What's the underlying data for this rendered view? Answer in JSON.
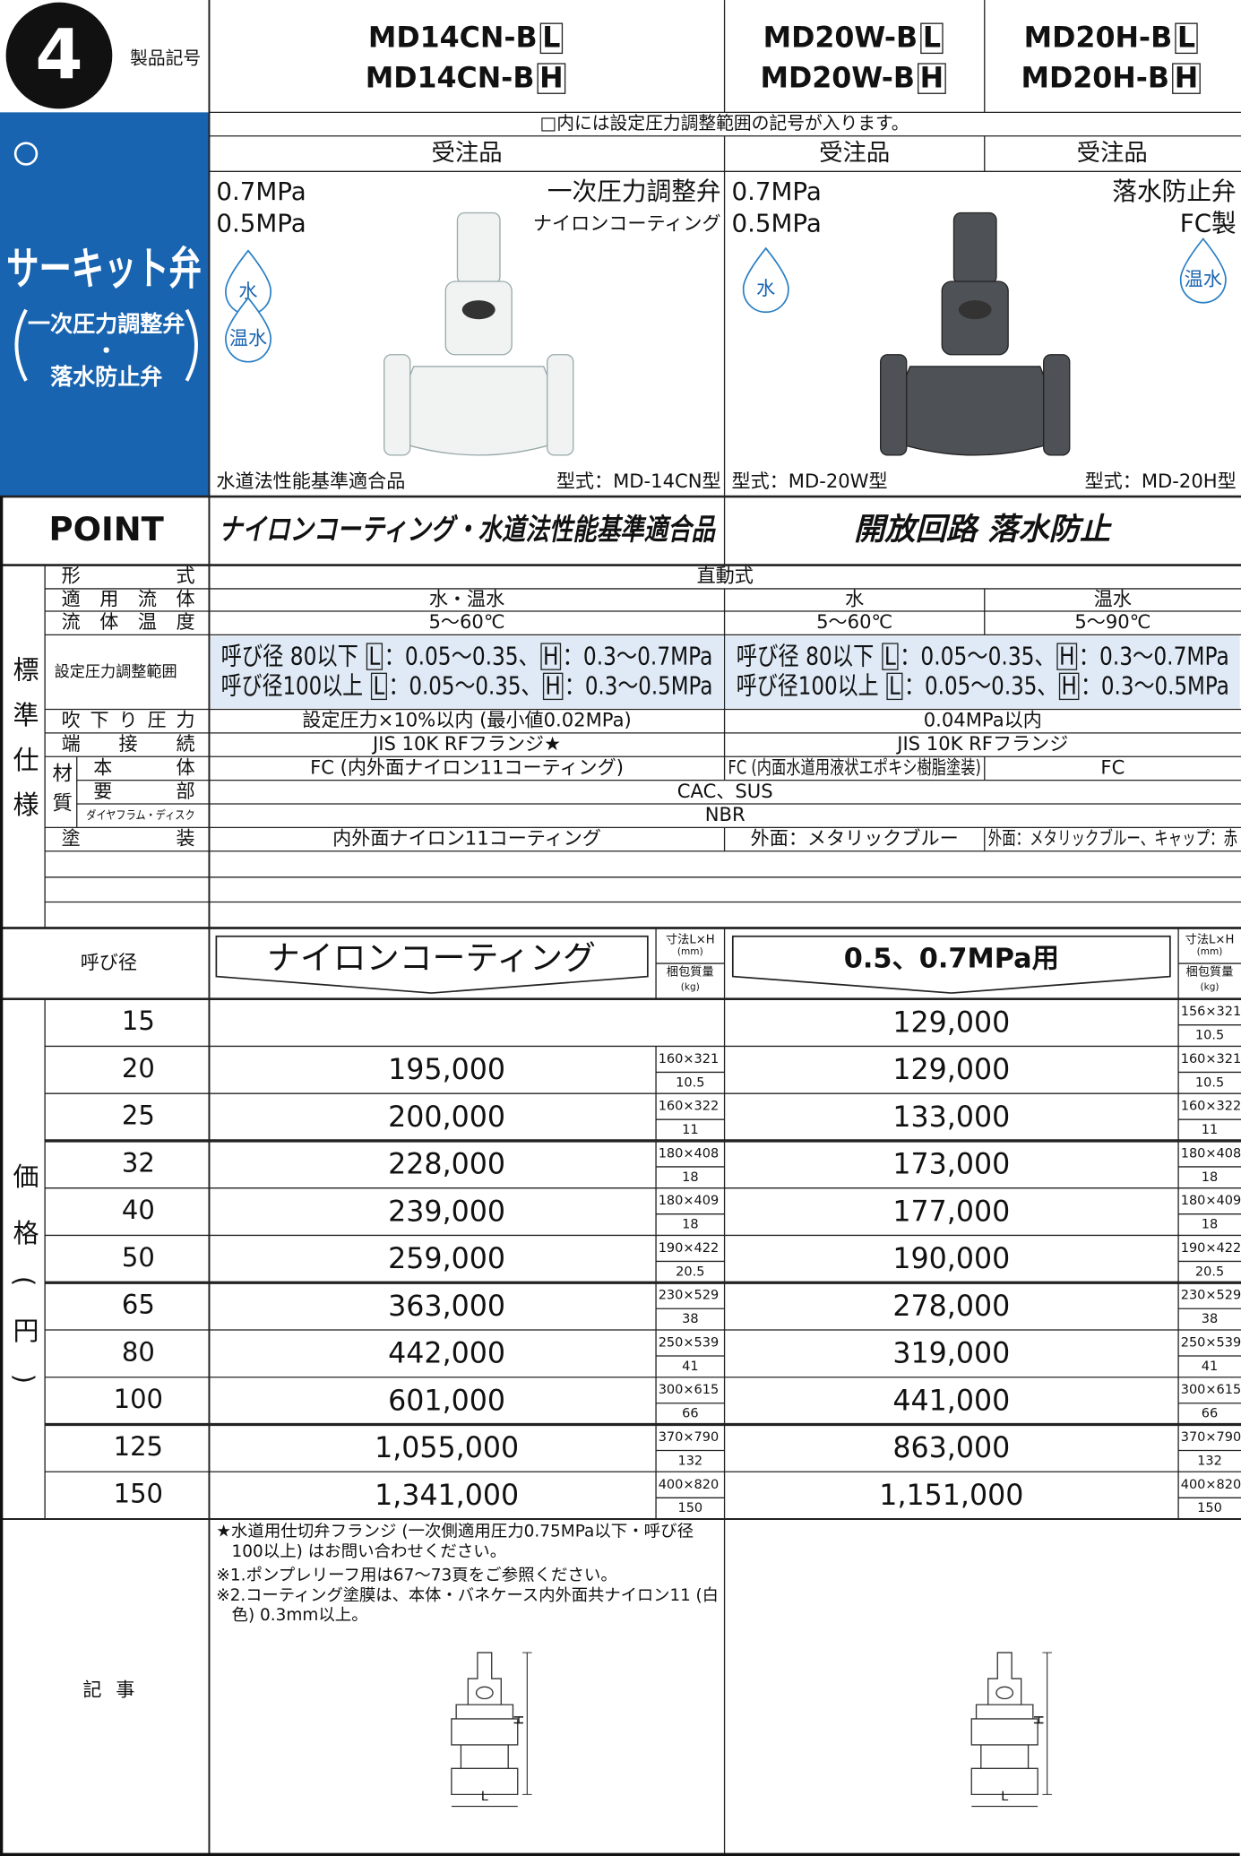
{
  "header": {
    "badge": "4",
    "label": "製品記号",
    "category": "サーキット弁",
    "category_sub": [
      "一次圧力調整弁",
      "・",
      "落水防止弁"
    ]
  },
  "models": [
    {
      "lines": [
        [
          "MD14CN-B",
          "L"
        ],
        [
          "MD14CN-B",
          "H"
        ]
      ]
    },
    {
      "lines": [
        [
          "MD20W-B",
          "L"
        ],
        [
          "MD20W-B",
          "H"
        ]
      ]
    },
    {
      "lines": [
        [
          "MD20H-B",
          "L"
        ],
        [
          "MD20H-B",
          "H"
        ]
      ]
    }
  ],
  "model_note": "□内には設定圧力調整範囲の記号が入ります。",
  "order": [
    "受注品",
    "受注品",
    "受注品"
  ],
  "products": [
    {
      "pressures": [
        "0.7MPa",
        "0.5MPa"
      ],
      "type": "一次圧力調整弁",
      "subtype": "ナイロンコーティング",
      "fluids": [
        "水",
        "温水"
      ],
      "caption_left": "水道法性能基準適合品",
      "caption_right": "型式：MD-14CN型"
    },
    {
      "pressures": [
        "0.7MPa",
        "0.5MPa"
      ],
      "fluids": [
        "水"
      ],
      "caption_left": "型式：MD-20W型"
    },
    {
      "type": "落水防止弁",
      "subtype": "FC製",
      "fluids": [
        "温水"
      ],
      "caption_right": "型式：MD-20H型"
    }
  ],
  "point": {
    "label": "POINT",
    "texts": [
      "ナイロンコーティング・水道法性能基準適合品",
      "開放回路 落水防止"
    ]
  },
  "spec": {
    "label": "標準仕様",
    "rows": [
      {
        "label": "形式",
        "cells": [
          "直動式"
        ]
      },
      {
        "label": "適用流体",
        "cells": [
          "水・温水",
          "水",
          "温水"
        ]
      },
      {
        "label": "流体温度",
        "cells": [
          "5〜60℃",
          "5〜60℃",
          "5〜90℃"
        ]
      },
      {
        "label": "設定圧力調整範囲",
        "cells": [
          [
            [
              "呼び径 80以下 ",
              "L",
              "：0.05〜0.35、",
              "H",
              "：0.3〜0.7MPa"
            ],
            [
              "呼び径100以上 ",
              "L",
              "：0.05〜0.35、",
              "H",
              "：0.3〜0.5MPa"
            ]
          ],
          [
            [
              "呼び径 80以下 ",
              "L",
              "：0.05〜0.35、",
              "H",
              "：0.3〜0.7MPa"
            ],
            [
              "呼び径100以上 ",
              "L",
              "：0.05〜0.35、",
              "H",
              "：0.3〜0.5MPa"
            ]
          ]
        ]
      },
      {
        "label": "吹下り圧力",
        "cells": [
          "設定圧力×10%以内 (最小値0.02MPa)",
          "0.04MPa以内"
        ]
      },
      {
        "label": "端接続",
        "cells": [
          "JIS 10K RFフランジ★",
          "JIS 10K RFフランジ"
        ]
      },
      {
        "label": "材質",
        "rows": [
          {
            "label": "本体",
            "cells": [
              "FC (内外面ナイロン11コーティング)",
              "FC (内面水道用液状エポキシ樹脂塗装)",
              "FC"
            ]
          },
          {
            "label": "要部",
            "cells": [
              "CAC、SUS"
            ]
          },
          {
            "label": "ダイヤフラム・ディスク",
            "cells": [
              "NBR"
            ]
          }
        ]
      },
      {
        "label": "塗装",
        "cells": [
          "内外面ナイロン11コーティング",
          "外面：メタリックブルー",
          "外面：メタリックブルー、キャップ：赤"
        ]
      }
    ]
  },
  "price": {
    "label": "価格(円)",
    "size_header": "呼び径",
    "titles": [
      "ナイロンコーティング",
      "0.5、0.7MPa用"
    ],
    "dim_header": [
      "寸法L×H",
      "(mm)",
      "梱包質量",
      "(kg)"
    ],
    "rows": [
      {
        "size": "15",
        "left": null,
        "right": {
          "price": "129,000",
          "dim": "156×321",
          "weight": "10.5"
        }
      },
      {
        "size": "20",
        "left": {
          "price": "195,000",
          "dim": "160×321",
          "weight": "10.5"
        },
        "right": {
          "price": "129,000",
          "dim": "160×321",
          "weight": "10.5"
        }
      },
      {
        "size": "25",
        "left": {
          "price": "200,000",
          "dim": "160×322",
          "weight": "11"
        },
        "right": {
          "price": "133,000",
          "dim": "160×322",
          "weight": "11"
        }
      },
      {
        "size": "32",
        "left": {
          "price": "228,000",
          "dim": "180×408",
          "weight": "18"
        },
        "right": {
          "price": "173,000",
          "dim": "180×408",
          "weight": "18"
        }
      },
      {
        "size": "40",
        "left": {
          "price": "239,000",
          "dim": "180×409",
          "weight": "18"
        },
        "right": {
          "price": "177,000",
          "dim": "180×409",
          "weight": "18"
        }
      },
      {
        "size": "50",
        "left": {
          "price": "259,000",
          "dim": "190×422",
          "weight": "20.5"
        },
        "right": {
          "price": "190,000",
          "dim": "190×422",
          "weight": "20.5"
        }
      },
      {
        "size": "65",
        "left": {
          "price": "363,000",
          "dim": "230×529",
          "weight": "38"
        },
        "right": {
          "price": "278,000",
          "dim": "230×529",
          "weight": "38"
        }
      },
      {
        "size": "80",
        "left": {
          "price": "442,000",
          "dim": "250×539",
          "weight": "41"
        },
        "right": {
          "price": "319,000",
          "dim": "250×539",
          "weight": "41"
        }
      },
      {
        "size": "100",
        "left": {
          "price": "601,000",
          "dim": "300×615",
          "weight": "66"
        },
        "right": {
          "price": "441,000",
          "dim": "300×615",
          "weight": "66"
        }
      },
      {
        "size": "125",
        "left": {
          "price": "1,055,000",
          "dim": "370×790",
          "weight": "132"
        },
        "right": {
          "price": "863,000",
          "dim": "370×790",
          "weight": "132"
        }
      },
      {
        "size": "150",
        "left": {
          "price": "1,341,000",
          "dim": "400×820",
          "weight": "150"
        },
        "right": {
          "price": "1,151,000",
          "dim": "400×820",
          "weight": "150"
        }
      }
    ]
  },
  "notes": {
    "label": "記事",
    "lines": [
      "★水道用仕切弁フランジ (一次側適用圧力0.75MPa以下・呼び径",
      "100以上) はお問い合わせください。",
      "※1.ポンプレリーフ用は67〜73頁をご参照ください。",
      "※2.コーティング塗膜は、本体・バネケース内外面共ナイロン11 (白",
      "色) 0.3mm以上。"
    ],
    "diagram_labels": [
      [
        "H",
        "L"
      ],
      [
        "H",
        "L"
      ]
    ]
  }
}
